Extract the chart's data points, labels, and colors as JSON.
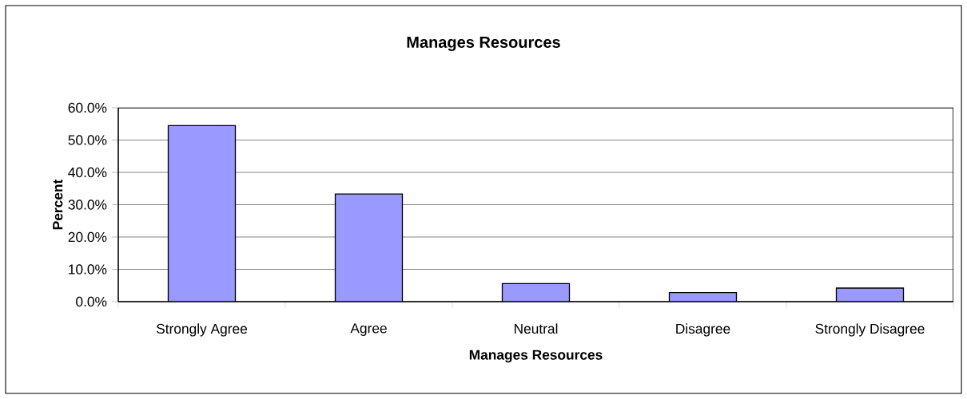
{
  "chart_data": {
    "type": "bar",
    "title": "Manages Resources",
    "xlabel": "Manages Resources",
    "ylabel": "Percent",
    "categories": [
      "Strongly Agree",
      "Agree",
      "Neutral",
      "Disagree",
      "Strongly Disagree"
    ],
    "values": [
      54.5,
      33.3,
      5.6,
      2.8,
      4.2
    ],
    "color": "#9999ff",
    "ylim": [
      0,
      60
    ],
    "yticks": [
      {
        "value": 0,
        "label": "0.0%"
      },
      {
        "value": 10,
        "label": "10.0%"
      },
      {
        "value": 20,
        "label": "20.0%"
      },
      {
        "value": 30,
        "label": "30.0%"
      },
      {
        "value": 40,
        "label": "40.0%"
      },
      {
        "value": 50,
        "label": "50.0%"
      },
      {
        "value": 60,
        "label": "60.0%"
      }
    ],
    "grid": "y"
  }
}
